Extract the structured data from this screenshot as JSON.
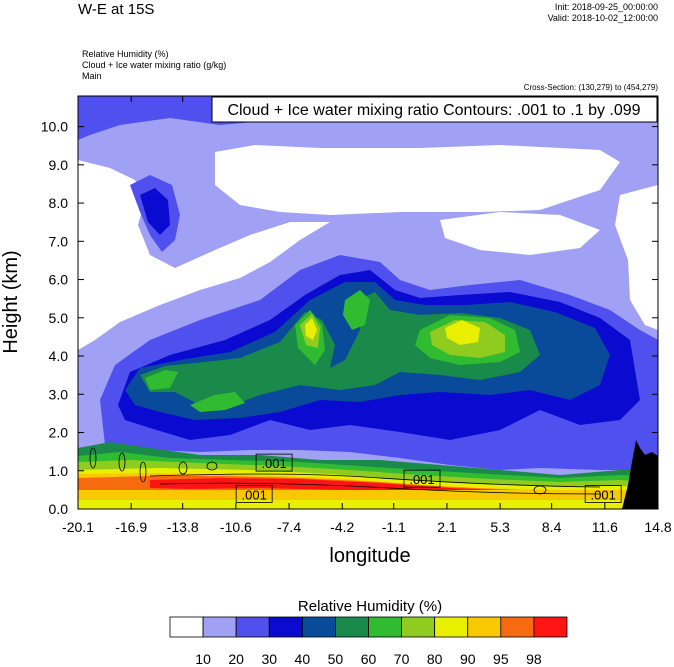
{
  "header": {
    "title": "W-E at 15S",
    "init": "Init: 2018-09-25_00:00:00",
    "valid": "Valid: 2018-10-02_12:00:00",
    "fields": [
      "Relative Humidity   (%)",
      "Cloud + Ice water mixing ratio   (g/kg)",
      "Main"
    ],
    "cross_section": "Cross-Section: (130,279) to (454,279)"
  },
  "chart_data": {
    "type": "heatmap",
    "title": "W-E at 15S",
    "xlabel": "longitude",
    "ylabel": "Height (km)",
    "xlim": [
      -20.1,
      14.8
    ],
    "ylim": [
      0.0,
      10.8
    ],
    "x_ticks": [
      "-20.1",
      "-16.9",
      "-13.8",
      "-10.6",
      "-7.4",
      "-4.2",
      "-1.1",
      "2.1",
      "5.3",
      "8.4",
      "11.6",
      "14.8"
    ],
    "y_ticks": [
      "0.0",
      "1.0",
      "2.0",
      "3.0",
      "4.0",
      "5.0",
      "6.0",
      "7.0",
      "8.0",
      "9.0",
      "10.0"
    ],
    "contour_info": "Cloud + Ice water mixing ratio Contours: .001 to .1 by .099",
    "contour_labels": [
      {
        "text": ".001",
        "x": -8.3,
        "y": 1.2
      },
      {
        "text": ".001",
        "x": -9.5,
        "y": 0.38
      },
      {
        "text": ".001",
        "x": 0.6,
        "y": 0.78
      },
      {
        "text": ".001",
        "x": 11.5,
        "y": 0.38
      }
    ],
    "colorbar": {
      "title": "Relative Humidity  (%)",
      "levels": [
        "10",
        "20",
        "30",
        "40",
        "50",
        "60",
        "70",
        "80",
        "90",
        "95",
        "98"
      ],
      "colors": [
        "#ffffff",
        "#a0a0f5",
        "#5050ee",
        "#0a0ad0",
        "#0a4a9a",
        "#1a8a4a",
        "#30bb30",
        "#90cc20",
        "#e8f000",
        "#f8c800",
        "#f86a10",
        "#ff1414"
      ]
    }
  }
}
